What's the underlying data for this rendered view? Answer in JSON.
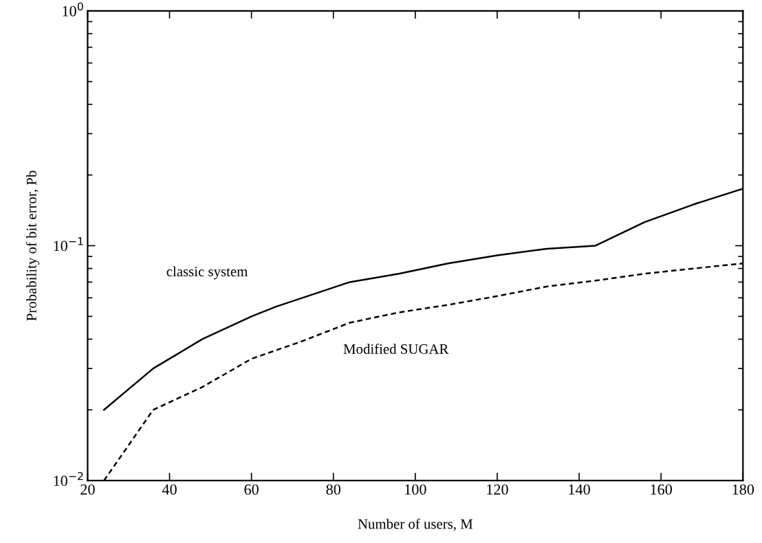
{
  "chart_data": {
    "type": "line",
    "xlabel": "Number of users, M",
    "ylabel": "Probability of bit error, Pb",
    "log": "y",
    "xlim": [
      20,
      180
    ],
    "xticks": [
      20,
      40,
      60,
      80,
      100,
      120,
      140,
      160,
      180
    ],
    "ylim": [
      0.01,
      1
    ],
    "yticks": [
      {
        "value": 0.01,
        "label": "10$^{−2}$"
      },
      {
        "value": 0.1,
        "label": "10$^{−1}$"
      },
      {
        "value": 1,
        "label": "10$^{0}$"
      }
    ],
    "grid": false,
    "legend": false,
    "series": [
      {
        "name": "classic system",
        "color": "#000000",
        "line_style": "solid",
        "x": [
          24,
          36,
          48,
          60,
          66,
          84,
          96,
          108,
          120,
          132,
          144,
          156,
          168,
          180
        ],
        "values": [
          0.02,
          0.03,
          0.04,
          0.05,
          0.055,
          0.07,
          0.076,
          0.084,
          0.091,
          0.097,
          0.1,
          0.126,
          0.15,
          0.175
        ]
      },
      {
        "name": "Modified SUGAR",
        "color": "#000000",
        "line_style": "dashed",
        "x": [
          24,
          36,
          48,
          60,
          72,
          84,
          96,
          108,
          120,
          132,
          144,
          156,
          168,
          180
        ],
        "values": [
          0.01,
          0.02,
          0.025,
          0.033,
          0.039,
          0.047,
          0.052,
          0.056,
          0.061,
          0.067,
          0.071,
          0.076,
          0.08,
          0.084
        ]
      }
    ]
  }
}
